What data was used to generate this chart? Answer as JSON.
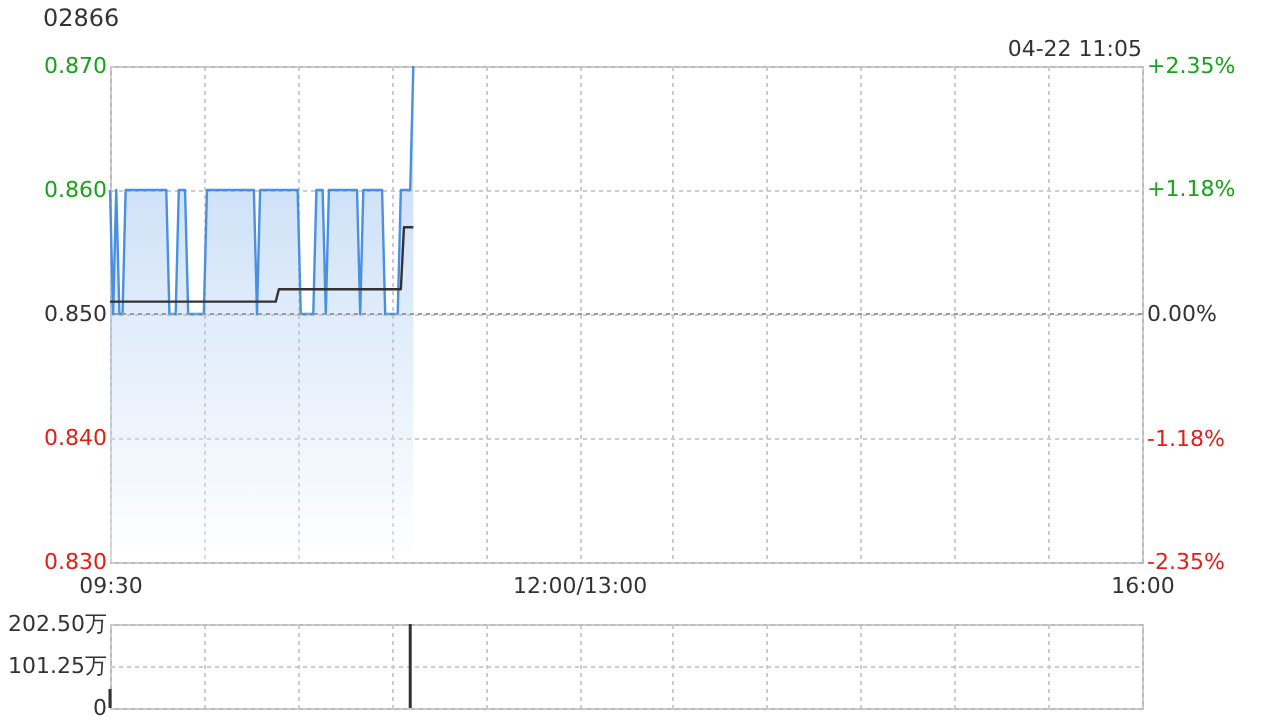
{
  "chart_data": [
    {
      "type": "line",
      "title": "02866",
      "annotations": [
        "04-22 11:05"
      ],
      "categories": [
        "09:30",
        null,
        null,
        null,
        null,
        null,
        null,
        null,
        null,
        null,
        null,
        null,
        null,
        null,
        null,
        null,
        null,
        null,
        null,
        null,
        null,
        null,
        null,
        null,
        null,
        null,
        null,
        null,
        null,
        null,
        null,
        null,
        null,
        null,
        null,
        null,
        null,
        null,
        null,
        null,
        null,
        null,
        null,
        null,
        null,
        null,
        null,
        null,
        null,
        null,
        null,
        null,
        null,
        null,
        null,
        null,
        null,
        null,
        null,
        null,
        null,
        null,
        null,
        null,
        null,
        null,
        null,
        null,
        null,
        null,
        null,
        null,
        null,
        null,
        null,
        null,
        null,
        null,
        null,
        null,
        null,
        null,
        null,
        null,
        null,
        null,
        null,
        null,
        null,
        null,
        null,
        null,
        null,
        null,
        null,
        null,
        null,
        null,
        null,
        null,
        null,
        null,
        null,
        null,
        null,
        null,
        null,
        null,
        null,
        null,
        null,
        null,
        null,
        null,
        null,
        null,
        null,
        null,
        null,
        null,
        null,
        null,
        null,
        null,
        null,
        null,
        null,
        null,
        null,
        null,
        null,
        null,
        null,
        null,
        null,
        null,
        null,
        null,
        null,
        null,
        null,
        null,
        null,
        null,
        null,
        null,
        null,
        null,
        null,
        null,
        "12:00/13:00",
        null,
        null,
        null,
        null,
        null,
        null,
        null,
        null,
        null,
        null,
        null,
        null,
        null,
        null,
        null,
        null,
        null,
        null,
        null,
        null,
        null,
        null,
        null,
        null,
        null,
        null,
        null,
        null,
        null,
        null,
        null,
        null,
        null,
        null,
        null,
        null,
        null,
        null,
        null,
        null,
        null,
        null,
        null,
        null,
        null,
        null,
        null,
        null,
        null,
        null,
        null,
        null,
        null,
        null,
        null,
        null,
        null,
        null,
        null,
        null,
        null,
        null,
        null,
        null,
        null,
        null,
        null,
        null,
        null,
        null,
        null,
        null,
        null,
        null,
        null,
        null,
        null,
        null,
        null,
        null,
        null,
        null,
        null,
        null,
        null,
        null,
        null,
        null,
        null,
        null,
        null,
        null,
        null,
        null,
        null,
        null,
        null,
        null,
        null,
        null,
        null,
        null,
        null,
        null,
        null,
        null,
        null,
        null,
        null,
        null,
        null,
        null,
        null,
        null,
        null,
        null,
        null,
        null,
        null,
        null,
        null,
        null,
        null,
        null,
        null,
        null,
        null,
        null,
        null,
        null,
        null,
        null,
        null,
        null,
        null,
        null,
        null,
        null,
        null,
        null,
        null,
        null,
        null,
        null,
        null,
        null,
        null,
        null,
        null,
        null,
        null,
        null,
        null,
        null,
        null,
        null,
        null,
        null,
        null,
        null,
        null,
        null,
        null,
        null,
        null,
        null,
        null,
        null,
        null,
        null,
        null,
        null,
        null,
        null,
        null,
        null,
        null,
        null,
        null,
        "16:00"
      ],
      "ylim": [
        0.83,
        0.87
      ],
      "yticks": [
        {
          "value": 0.83,
          "label": "0.830"
        },
        {
          "value": 0.84,
          "label": "0.840"
        },
        {
          "value": 0.85,
          "label": "0.850"
        },
        {
          "value": 0.86,
          "label": "0.860"
        },
        {
          "value": 0.87,
          "label": "0.870"
        }
      ],
      "y2lim": [
        -2.35,
        2.35
      ],
      "y2ticks": [
        {
          "value": -2.35,
          "label": "-2.35%"
        },
        {
          "value": -1.18,
          "label": "-1.18%"
        },
        {
          "value": 0,
          "label": "0.00%"
        },
        {
          "value": 1.18,
          "label": "+1.18%"
        },
        {
          "value": 2.35,
          "label": "+2.35%"
        }
      ],
      "grid": true,
      "ref_lines": [
        {
          "axis": "y",
          "value": 0.85,
          "color": "#999999",
          "line_style": "dotted"
        }
      ],
      "series": [
        {
          "type": "area",
          "color": "#4a90e2",
          "values": [
            0.86,
            0.85,
            0.86,
            0.85,
            0.85,
            0.86,
            0.86,
            0.86,
            0.86,
            0.86,
            0.86,
            0.86,
            0.86,
            0.86,
            0.86,
            0.86,
            0.86,
            0.86,
            0.86,
            0.85,
            0.85,
            0.85,
            0.86,
            0.86,
            0.86,
            0.85,
            0.85,
            0.85,
            0.85,
            0.85,
            0.85,
            0.86,
            0.86,
            0.86,
            0.86,
            0.86,
            0.86,
            0.86,
            0.86,
            0.86,
            0.86,
            0.86,
            0.86,
            0.86,
            0.86,
            0.86,
            0.86,
            0.85,
            0.86,
            0.86,
            0.86,
            0.86,
            0.86,
            0.86,
            0.86,
            0.86,
            0.86,
            0.86,
            0.86,
            0.86,
            0.86,
            0.85,
            0.85,
            0.85,
            0.85,
            0.85,
            0.86,
            0.86,
            0.86,
            0.85,
            0.86,
            0.86,
            0.86,
            0.86,
            0.86,
            0.86,
            0.86,
            0.86,
            0.86,
            0.86,
            0.85,
            0.86,
            0.86,
            0.86,
            0.86,
            0.86,
            0.86,
            0.86,
            0.85,
            0.85,
            0.85,
            0.85,
            0.85,
            0.86,
            0.86,
            0.86,
            0.86,
            0.87,
            null,
            null,
            null,
            null,
            null,
            null,
            null,
            null,
            null,
            null,
            null,
            null,
            null,
            null,
            null,
            null,
            null,
            null,
            null,
            null,
            null,
            null,
            null,
            null,
            null,
            null,
            null,
            null,
            null,
            null,
            null,
            null,
            null,
            null,
            null,
            null,
            null,
            null,
            null,
            null,
            null,
            null,
            null,
            null,
            null,
            null,
            null,
            null,
            null,
            null,
            null,
            null,
            null,
            null,
            null,
            null,
            null,
            null,
            null,
            null,
            null,
            null,
            null,
            null,
            null,
            null,
            null,
            null,
            null,
            null,
            null,
            null,
            null,
            null,
            null,
            null,
            null,
            null,
            null,
            null,
            null,
            null,
            null,
            null,
            null,
            null,
            null,
            null,
            null,
            null,
            null,
            null,
            null,
            null,
            null,
            null,
            null,
            null,
            null,
            null,
            null,
            null,
            null,
            null,
            null,
            null,
            null,
            null,
            null,
            null,
            null,
            null,
            null,
            null,
            null,
            null,
            null,
            null,
            null,
            null,
            null,
            null,
            null,
            null,
            null,
            null,
            null,
            null,
            null,
            null,
            null,
            null,
            null,
            null,
            null,
            null,
            null,
            null,
            null,
            null,
            null,
            null,
            null,
            null,
            null,
            null,
            null,
            null,
            null,
            null,
            null,
            null,
            null,
            null,
            null,
            null,
            null,
            null,
            null,
            null,
            null,
            null,
            null,
            null,
            null,
            null,
            null,
            null,
            null,
            null,
            null,
            null,
            null,
            null,
            null,
            null,
            null,
            null,
            null,
            null,
            null,
            null,
            null,
            null,
            null,
            null,
            null,
            null,
            null,
            null,
            null,
            null,
            null,
            null,
            null,
            null,
            null,
            null,
            null,
            null,
            null,
            null,
            null,
            null,
            null,
            null,
            null,
            null,
            null,
            null,
            null,
            null,
            null,
            null,
            null,
            null,
            null,
            null,
            null,
            null,
            null,
            null,
            null,
            null,
            null,
            null,
            null,
            null,
            null,
            null,
            null,
            null,
            null
          ]
        },
        {
          "type": "line",
          "color": "#333333",
          "values": [
            0.851,
            0.851,
            0.851,
            0.851,
            0.851,
            0.851,
            0.851,
            0.851,
            0.851,
            0.851,
            0.851,
            0.851,
            0.851,
            0.851,
            0.851,
            0.851,
            0.851,
            0.851,
            0.851,
            0.851,
            0.851,
            0.851,
            0.851,
            0.851,
            0.851,
            0.851,
            0.851,
            0.851,
            0.851,
            0.851,
            0.851,
            0.851,
            0.851,
            0.851,
            0.851,
            0.851,
            0.851,
            0.851,
            0.851,
            0.851,
            0.851,
            0.851,
            0.851,
            0.851,
            0.851,
            0.851,
            0.851,
            0.851,
            0.851,
            0.851,
            0.851,
            0.851,
            0.851,
            0.851,
            0.852,
            0.852,
            0.852,
            0.852,
            0.852,
            0.852,
            0.852,
            0.852,
            0.852,
            0.852,
            0.852,
            0.852,
            0.852,
            0.852,
            0.852,
            0.852,
            0.852,
            0.852,
            0.852,
            0.852,
            0.852,
            0.852,
            0.852,
            0.852,
            0.852,
            0.852,
            0.852,
            0.852,
            0.852,
            0.852,
            0.852,
            0.852,
            0.852,
            0.852,
            0.852,
            0.852,
            0.852,
            0.852,
            0.852,
            0.852,
            0.857,
            0.857,
            0.857,
            0.857,
            null,
            null,
            null,
            null,
            null,
            null,
            null,
            null,
            null,
            null,
            null,
            null,
            null,
            null,
            null,
            null,
            null,
            null,
            null,
            null,
            null,
            null,
            null,
            null,
            null,
            null,
            null,
            null,
            null,
            null,
            null,
            null,
            null,
            null,
            null,
            null,
            null,
            null,
            null,
            null,
            null,
            null,
            null,
            null,
            null,
            null,
            null,
            null,
            null,
            null,
            null,
            null,
            null,
            null,
            null,
            null,
            null,
            null,
            null,
            null,
            null,
            null,
            null,
            null,
            null,
            null,
            null,
            null,
            null,
            null,
            null,
            null,
            null,
            null,
            null,
            null,
            null,
            null,
            null,
            null,
            null,
            null,
            null,
            null,
            null,
            null,
            null,
            null,
            null,
            null,
            null,
            null,
            null,
            null,
            null,
            null,
            null,
            null,
            null,
            null,
            null,
            null,
            null,
            null,
            null,
            null,
            null,
            null,
            null,
            null,
            null,
            null,
            null,
            null,
            null,
            null,
            null,
            null,
            null,
            null,
            null,
            null,
            null,
            null,
            null,
            null,
            null,
            null,
            null,
            null,
            null,
            null,
            null,
            null,
            null,
            null,
            null,
            null,
            null,
            null,
            null,
            null,
            null,
            null,
            null,
            null,
            null,
            null,
            null,
            null,
            null,
            null,
            null,
            null,
            null,
            null,
            null,
            null,
            null,
            null,
            null,
            null,
            null,
            null,
            null,
            null,
            null,
            null,
            null,
            null,
            null,
            null,
            null,
            null,
            null,
            null,
            null,
            null,
            null,
            null,
            null,
            null,
            null,
            null,
            null,
            null,
            null,
            null,
            null,
            null,
            null,
            null,
            null,
            null,
            null,
            null,
            null,
            null,
            null,
            null,
            null,
            null,
            null,
            null,
            null,
            null,
            null,
            null,
            null,
            null,
            null,
            null,
            null,
            null,
            null,
            null,
            null,
            null,
            null,
            null,
            null,
            null,
            null,
            null,
            null,
            null,
            null,
            null,
            null,
            null,
            null,
            null,
            null
          ]
        }
      ]
    },
    {
      "type": "bar",
      "categories": [
        null,
        null,
        null,
        null,
        null,
        null,
        null,
        null,
        null,
        null,
        null,
        null,
        null,
        null,
        null,
        null,
        null,
        null,
        null,
        null,
        null,
        null,
        null,
        null,
        null,
        null,
        null,
        null,
        null,
        null,
        null,
        null,
        null,
        null,
        null,
        null,
        null,
        null,
        null,
        null,
        null,
        null,
        null,
        null,
        null,
        null,
        null,
        null,
        null,
        null,
        null,
        null,
        null,
        null,
        null,
        null,
        null,
        null,
        null,
        null,
        null,
        null,
        null,
        null,
        null,
        null,
        null,
        null,
        null,
        null,
        null,
        null,
        null,
        null,
        null,
        null,
        null,
        null,
        null,
        null,
        null,
        null,
        null,
        null,
        null,
        null,
        null,
        null,
        null,
        null,
        null,
        null,
        null,
        null,
        null,
        null,
        null,
        null,
        null,
        null,
        null,
        null,
        null,
        null,
        null,
        null,
        null,
        null,
        null,
        null,
        null,
        null,
        null,
        null,
        null,
        null,
        null,
        null,
        null,
        null,
        null,
        null,
        null,
        null,
        null,
        null,
        null,
        null,
        null,
        null,
        null,
        null,
        null,
        null,
        null,
        null,
        null,
        null,
        null,
        null,
        null,
        null,
        null,
        null,
        null,
        null,
        null,
        null,
        null,
        null,
        null,
        null,
        null,
        null,
        null,
        null,
        null,
        null,
        null,
        null,
        null,
        null,
        null,
        null,
        null,
        null,
        null,
        null,
        null,
        null,
        null,
        null,
        null,
        null,
        null,
        null,
        null,
        null,
        null,
        null,
        null,
        null,
        null,
        null,
        null,
        null,
        null,
        null,
        null,
        null,
        null,
        null,
        null,
        null,
        null,
        null,
        null,
        null,
        null,
        null,
        null,
        null,
        null,
        null,
        null,
        null,
        null,
        null,
        null,
        null,
        null,
        null,
        null,
        null,
        null,
        null,
        null,
        null,
        null,
        null,
        null,
        null,
        null,
        null,
        null,
        null,
        null,
        null,
        null,
        null,
        null,
        null,
        null,
        null,
        null,
        null,
        null,
        null,
        null,
        null,
        null,
        null,
        null,
        null,
        null,
        null,
        null,
        null,
        null,
        null,
        null,
        null,
        null,
        null,
        null,
        null,
        null,
        null,
        null,
        null,
        null,
        null,
        null,
        null,
        null,
        null,
        null,
        null,
        null,
        null,
        null,
        null,
        null,
        null,
        null,
        null,
        null,
        null,
        null,
        null,
        null,
        null,
        null,
        null,
        null,
        null,
        null,
        null,
        null,
        null,
        null,
        null,
        null,
        null,
        null,
        null,
        null,
        null,
        null,
        null,
        null,
        null,
        null,
        null,
        null,
        null,
        null,
        null,
        null,
        null,
        null,
        null,
        null,
        null,
        null,
        null,
        null,
        null,
        null,
        null,
        null,
        null,
        null,
        null,
        null,
        null,
        null,
        null,
        null,
        null,
        null
      ],
      "ylim": [
        0,
        202.5
      ],
      "yticks": [
        {
          "value": 0,
          "label": "0"
        },
        {
          "value": 101.25,
          "label": "101.25万"
        },
        {
          "value": 202.5,
          "label": "202.50万"
        }
      ],
      "grid": true,
      "series": [
        {
          "color": "#333333",
          "values": [
            46,
            null,
            null,
            null,
            null,
            null,
            null,
            null,
            null,
            null,
            null,
            null,
            null,
            null,
            null,
            null,
            null,
            null,
            null,
            null,
            null,
            null,
            null,
            null,
            null,
            null,
            null,
            null,
            null,
            null,
            null,
            null,
            null,
            null,
            null,
            null,
            null,
            null,
            null,
            null,
            null,
            null,
            null,
            null,
            null,
            null,
            null,
            null,
            null,
            null,
            null,
            null,
            null,
            null,
            null,
            null,
            null,
            null,
            null,
            null,
            null,
            null,
            null,
            null,
            null,
            null,
            null,
            null,
            null,
            null,
            null,
            null,
            null,
            null,
            null,
            null,
            null,
            null,
            null,
            null,
            null,
            null,
            null,
            null,
            null,
            null,
            null,
            null,
            null,
            null,
            null,
            null,
            null,
            null,
            null,
            null,
            202.5,
            null,
            null,
            null,
            null,
            null,
            null,
            null,
            null,
            null,
            null,
            null,
            null,
            null,
            null,
            null,
            null,
            null,
            null,
            null,
            null,
            null,
            null,
            null,
            null,
            null,
            null,
            null,
            null,
            null,
            null,
            null,
            null,
            null,
            null,
            null,
            null,
            null,
            null,
            null,
            null,
            null,
            null,
            null,
            null,
            null,
            null,
            null,
            null,
            null,
            null,
            null,
            null,
            null,
            null,
            null,
            null,
            null,
            null,
            null,
            null,
            null,
            null,
            null,
            null,
            null,
            null,
            null,
            null,
            null,
            null,
            null,
            null,
            null,
            null,
            null,
            null,
            null,
            null,
            null,
            null,
            null,
            null,
            null,
            null,
            null,
            null,
            null,
            null,
            null,
            null,
            null,
            null,
            null,
            null,
            null,
            null,
            null,
            null,
            null,
            null,
            null,
            null,
            null,
            null,
            null,
            null,
            null,
            null,
            null,
            null,
            null,
            null,
            null,
            null,
            null,
            null,
            null,
            null,
            null,
            null,
            null,
            null,
            null,
            null,
            null,
            null,
            null,
            null,
            null,
            null,
            null,
            null,
            null,
            null,
            null,
            null,
            null,
            null,
            null,
            null,
            null,
            null,
            null,
            null,
            null,
            null,
            null,
            null,
            null,
            null,
            null,
            null,
            null,
            null,
            null,
            null,
            null,
            null,
            null,
            null,
            null,
            null,
            null,
            null,
            null,
            null,
            null,
            null,
            null,
            null,
            null,
            null,
            null,
            null,
            null,
            null,
            null,
            null,
            null,
            null,
            null,
            null,
            null,
            null,
            null,
            null,
            null,
            null,
            null,
            null,
            null,
            null,
            null,
            null,
            null,
            null,
            null,
            null,
            null,
            null,
            null,
            null,
            null,
            null,
            null,
            null,
            null,
            null,
            null,
            null,
            null,
            null,
            null,
            null,
            null,
            null,
            null,
            null,
            null,
            null,
            null,
            null,
            null,
            null,
            null,
            null,
            null,
            null,
            null,
            null,
            null,
            null,
            null,
            null
          ]
        }
      ]
    }
  ]
}
